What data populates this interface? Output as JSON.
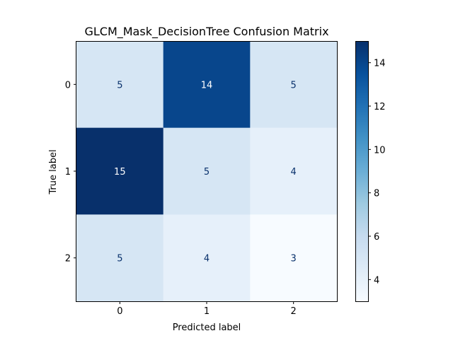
{
  "chart_data": {
    "type": "heatmap",
    "title": "GLCM_Mask_DecisionTree Confusion Matrix",
    "xlabel": "Predicted label",
    "ylabel": "True label",
    "x_categories": [
      "0",
      "1",
      "2"
    ],
    "y_categories": [
      "0",
      "1",
      "2"
    ],
    "values": [
      [
        5,
        14,
        5
      ],
      [
        15,
        5,
        4
      ],
      [
        5,
        4,
        3
      ]
    ],
    "colormap": "Blues",
    "color_range": [
      3,
      15
    ],
    "colorbar_ticks": [
      "4",
      "6",
      "8",
      "10",
      "12",
      "14"
    ],
    "grid": false
  }
}
